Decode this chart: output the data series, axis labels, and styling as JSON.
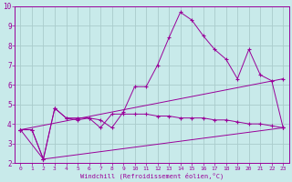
{
  "xlabel": "Windchill (Refroidissement éolien,°C)",
  "bg_color": "#c8eaea",
  "grid_color": "#aacccc",
  "line_color": "#990099",
  "xlim": [
    -0.5,
    23.5
  ],
  "ylim": [
    2,
    10
  ],
  "xticks": [
    0,
    1,
    2,
    3,
    4,
    5,
    6,
    7,
    8,
    9,
    10,
    11,
    12,
    13,
    14,
    15,
    16,
    17,
    18,
    19,
    20,
    21,
    22,
    23
  ],
  "yticks": [
    2,
    3,
    4,
    5,
    6,
    7,
    8,
    9,
    10
  ],
  "line1_x": [
    0,
    1,
    2,
    3,
    4,
    5,
    6,
    7,
    8,
    9,
    10,
    11,
    12,
    13,
    14,
    15,
    16,
    17,
    18,
    19,
    20,
    21,
    22,
    23
  ],
  "line1_y": [
    3.7,
    3.7,
    2.2,
    4.8,
    4.3,
    4.2,
    4.3,
    4.2,
    3.8,
    4.6,
    5.9,
    5.9,
    7.0,
    8.4,
    9.7,
    9.3,
    8.5,
    7.8,
    7.3,
    6.3,
    7.8,
    6.5,
    6.2,
    3.8
  ],
  "line2_x": [
    0,
    1,
    2,
    3,
    4,
    5,
    6,
    7,
    8,
    9,
    10,
    11,
    12,
    13,
    14,
    15,
    16,
    17,
    18,
    19,
    20,
    21,
    22,
    23
  ],
  "line2_y": [
    3.7,
    3.7,
    2.2,
    4.8,
    4.3,
    4.3,
    4.3,
    3.8,
    4.5,
    4.5,
    4.5,
    4.5,
    4.4,
    4.4,
    4.3,
    4.3,
    4.3,
    4.2,
    4.2,
    4.1,
    4.0,
    4.0,
    3.9,
    3.8
  ],
  "line3_x": [
    0,
    2,
    23
  ],
  "line3_y": [
    3.7,
    2.2,
    3.8
  ],
  "line4_x": [
    0,
    23
  ],
  "line4_y": [
    3.7,
    6.3
  ]
}
